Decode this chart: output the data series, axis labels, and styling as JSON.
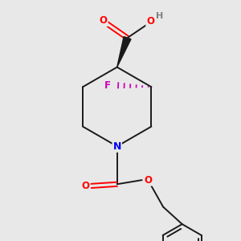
{
  "background_color": "#e8e8e8",
  "bond_color": "#1a1a1a",
  "atom_colors": {
    "O": "#ff0000",
    "N": "#0000ee",
    "F": "#cc00bb",
    "H": "#808080",
    "C": "#1a1a1a"
  },
  "figsize": [
    3.0,
    3.0
  ],
  "dpi": 100
}
